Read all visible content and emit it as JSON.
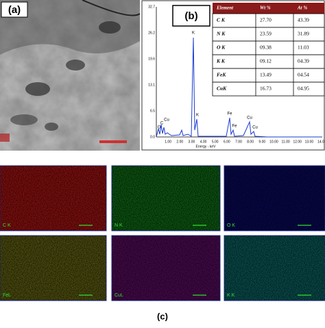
{
  "panel_a": {
    "label": "(a)"
  },
  "panel_b": {
    "label": "(b)",
    "table": {
      "header": [
        "Element",
        "Wt %",
        "At %"
      ],
      "rows": [
        [
          "C K",
          "27.70",
          "43.39"
        ],
        [
          "N K",
          "23.59",
          "31.89"
        ],
        [
          "O K",
          "09.38",
          "11.03"
        ],
        [
          "K K",
          "09.12",
          "04.39"
        ],
        [
          "FeK",
          "13.49",
          "04.54"
        ],
        [
          "CuK",
          "16.73",
          "04.95"
        ]
      ]
    },
    "spectrum": {
      "y_ticks": [
        "32.7",
        "26.2",
        "19.6",
        "13.1",
        "6.5",
        "0.0"
      ],
      "x_ticks": [
        "1.00",
        "2.00",
        "3.00",
        "4.00",
        "5.00",
        "6.00",
        "7.00",
        "8.00",
        "9.00",
        "10.00",
        "11.00",
        "12.00",
        "13.00",
        "14.0"
      ],
      "x_label": "Energy - keV",
      "peaks": [
        "C",
        "O",
        "Cu",
        "K",
        "K",
        "Fe",
        "Fe",
        "Cu",
        "Cu"
      ]
    }
  },
  "panel_c": {
    "label": "(c)",
    "maps": [
      "C K",
      "N K",
      "O K",
      "FeL",
      "CuL",
      "K K"
    ]
  }
}
